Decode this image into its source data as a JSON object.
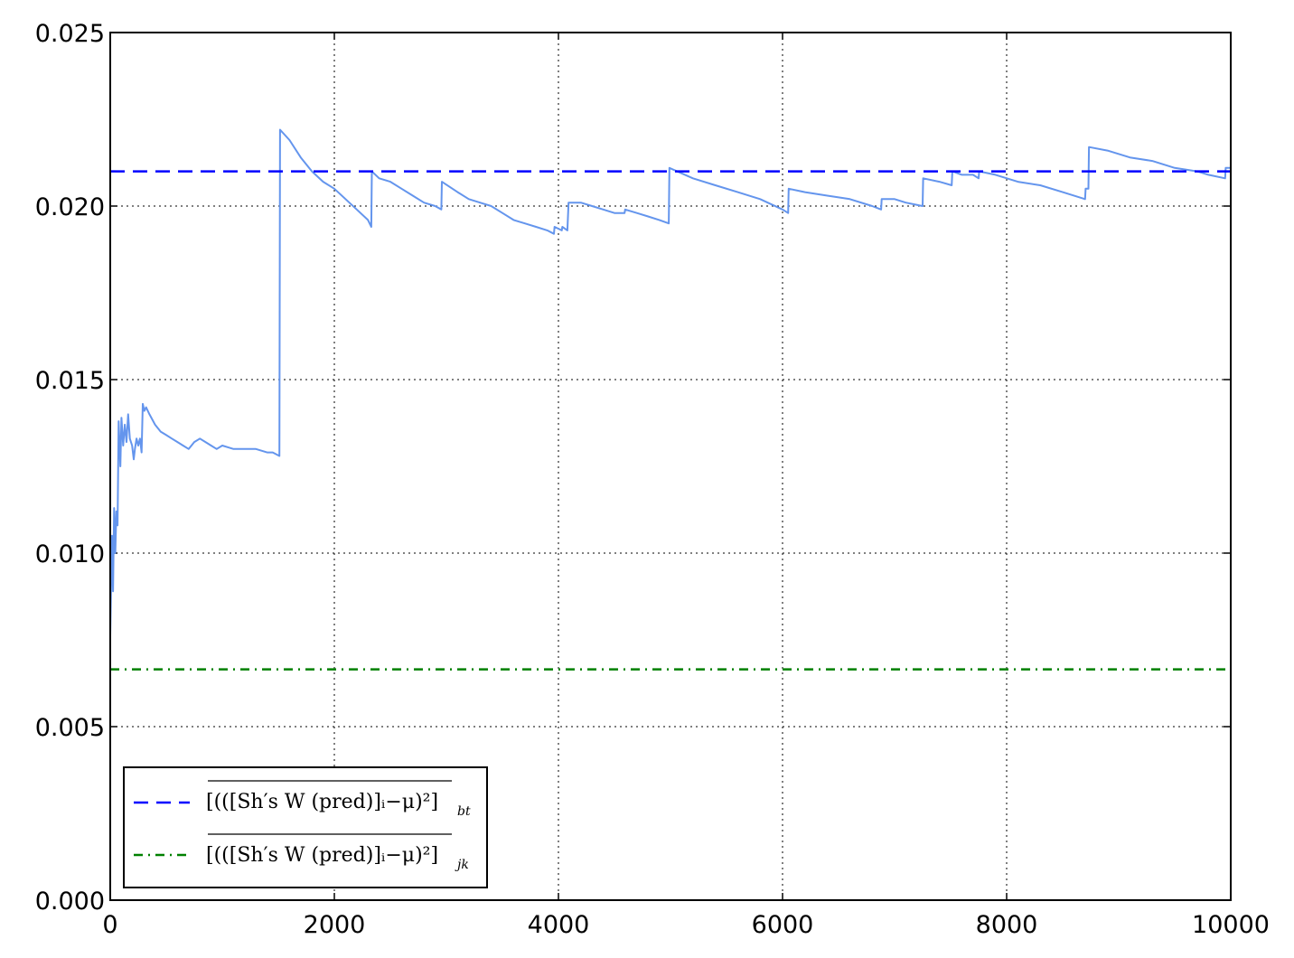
{
  "chart_data": {
    "type": "line",
    "title": "",
    "xlabel": "",
    "ylabel": "",
    "xlim": [
      0,
      10000
    ],
    "ylim": [
      0,
      0.025
    ],
    "grid": true,
    "grid_style": "dotted",
    "legend_position": "lower-left",
    "x_ticks": [
      "0",
      "2000",
      "4000",
      "6000",
      "8000",
      "10000"
    ],
    "y_ticks": [
      "0.000",
      "0.005",
      "0.010",
      "0.015",
      "0.020",
      "0.025"
    ],
    "colors": {
      "running_estimate": "#6495ED",
      "bootstrap": "#0000FF",
      "jackknife": "#008000"
    },
    "series": [
      {
        "key": "running_estimate",
        "style": "solid",
        "points": [
          [
            0,
            0.0076
          ],
          [
            15,
            0.0105
          ],
          [
            25,
            0.0089
          ],
          [
            35,
            0.0113
          ],
          [
            45,
            0.01
          ],
          [
            55,
            0.0112
          ],
          [
            65,
            0.0108
          ],
          [
            75,
            0.0138
          ],
          [
            90,
            0.0125
          ],
          [
            100,
            0.0139
          ],
          [
            115,
            0.0131
          ],
          [
            130,
            0.0137
          ],
          [
            145,
            0.0132
          ],
          [
            160,
            0.014
          ],
          [
            175,
            0.0133
          ],
          [
            195,
            0.0131
          ],
          [
            210,
            0.0127
          ],
          [
            220,
            0.013
          ],
          [
            235,
            0.0133
          ],
          [
            250,
            0.0131
          ],
          [
            265,
            0.0133
          ],
          [
            280,
            0.0129
          ],
          [
            290,
            0.0143
          ],
          [
            305,
            0.0141
          ],
          [
            320,
            0.0142
          ],
          [
            350,
            0.014
          ],
          [
            400,
            0.0137
          ],
          [
            450,
            0.0135
          ],
          [
            500,
            0.0134
          ],
          [
            550,
            0.0133
          ],
          [
            600,
            0.0132
          ],
          [
            650,
            0.0131
          ],
          [
            700,
            0.013
          ],
          [
            750,
            0.0132
          ],
          [
            800,
            0.0133
          ],
          [
            850,
            0.0132
          ],
          [
            900,
            0.0131
          ],
          [
            950,
            0.013
          ],
          [
            1000,
            0.0131
          ],
          [
            1100,
            0.013
          ],
          [
            1200,
            0.013
          ],
          [
            1300,
            0.013
          ],
          [
            1400,
            0.0129
          ],
          [
            1450,
            0.0129
          ],
          [
            1510,
            0.0128
          ],
          [
            1515,
            0.0222
          ],
          [
            1600,
            0.0219
          ],
          [
            1700,
            0.0214
          ],
          [
            1800,
            0.021
          ],
          [
            1900,
            0.0207
          ],
          [
            2000,
            0.0205
          ],
          [
            2100,
            0.0202
          ],
          [
            2200,
            0.0199
          ],
          [
            2300,
            0.0196
          ],
          [
            2330,
            0.0194
          ],
          [
            2335,
            0.021
          ],
          [
            2400,
            0.0208
          ],
          [
            2500,
            0.0207
          ],
          [
            2600,
            0.0205
          ],
          [
            2700,
            0.0203
          ],
          [
            2800,
            0.0201
          ],
          [
            2900,
            0.02
          ],
          [
            2955,
            0.0199
          ],
          [
            2960,
            0.0207
          ],
          [
            3100,
            0.0204
          ],
          [
            3200,
            0.0202
          ],
          [
            3300,
            0.0201
          ],
          [
            3400,
            0.02
          ],
          [
            3500,
            0.0198
          ],
          [
            3600,
            0.0196
          ],
          [
            3700,
            0.0195
          ],
          [
            3800,
            0.0194
          ],
          [
            3900,
            0.0193
          ],
          [
            3960,
            0.0192
          ],
          [
            3965,
            0.0194
          ],
          [
            4030,
            0.0193
          ],
          [
            4035,
            0.0194
          ],
          [
            4080,
            0.0193
          ],
          [
            4090,
            0.0201
          ],
          [
            4200,
            0.0201
          ],
          [
            4300,
            0.02
          ],
          [
            4400,
            0.0199
          ],
          [
            4500,
            0.0198
          ],
          [
            4590,
            0.0198
          ],
          [
            4595,
            0.0199
          ],
          [
            4700,
            0.0198
          ],
          [
            4800,
            0.0197
          ],
          [
            4900,
            0.0196
          ],
          [
            4985,
            0.0195
          ],
          [
            4990,
            0.0211
          ],
          [
            5200,
            0.0208
          ],
          [
            5400,
            0.0206
          ],
          [
            5600,
            0.0204
          ],
          [
            5800,
            0.0202
          ],
          [
            6000,
            0.0199
          ],
          [
            6050,
            0.0198
          ],
          [
            6055,
            0.0205
          ],
          [
            6200,
            0.0204
          ],
          [
            6400,
            0.0203
          ],
          [
            6600,
            0.0202
          ],
          [
            6800,
            0.02
          ],
          [
            6880,
            0.0199
          ],
          [
            6885,
            0.0202
          ],
          [
            7000,
            0.0202
          ],
          [
            7100,
            0.0201
          ],
          [
            7250,
            0.02
          ],
          [
            7255,
            0.0208
          ],
          [
            7400,
            0.0207
          ],
          [
            7510,
            0.0206
          ],
          [
            7515,
            0.021
          ],
          [
            7600,
            0.0209
          ],
          [
            7700,
            0.0209
          ],
          [
            7750,
            0.0208
          ],
          [
            7755,
            0.021
          ],
          [
            7900,
            0.0209
          ],
          [
            8100,
            0.0207
          ],
          [
            8300,
            0.0206
          ],
          [
            8500,
            0.0204
          ],
          [
            8700,
            0.0202
          ],
          [
            8705,
            0.0205
          ],
          [
            8730,
            0.0205
          ],
          [
            8735,
            0.0217
          ],
          [
            8900,
            0.0216
          ],
          [
            9100,
            0.0214
          ],
          [
            9300,
            0.0213
          ],
          [
            9500,
            0.0211
          ],
          [
            9700,
            0.021
          ],
          [
            9800,
            0.0209
          ],
          [
            9950,
            0.0208
          ],
          [
            9955,
            0.0211
          ],
          [
            10000,
            0.0211
          ]
        ]
      },
      {
        "key": "bootstrap",
        "style": "dashed",
        "points": [
          [
            0,
            0.021
          ],
          [
            10000,
            0.021
          ]
        ],
        "legend": {
          "main": "[(([Sh′s W (pred)]ᵢ−μ)²]",
          "sub": "bt"
        }
      },
      {
        "key": "jackknife",
        "style": "dashdot",
        "points": [
          [
            0,
            0.00665
          ],
          [
            10000,
            0.00665
          ]
        ],
        "legend": {
          "main": "[(([Sh′s W (pred)]ᵢ−μ)²]",
          "sub": "jk"
        }
      }
    ]
  }
}
